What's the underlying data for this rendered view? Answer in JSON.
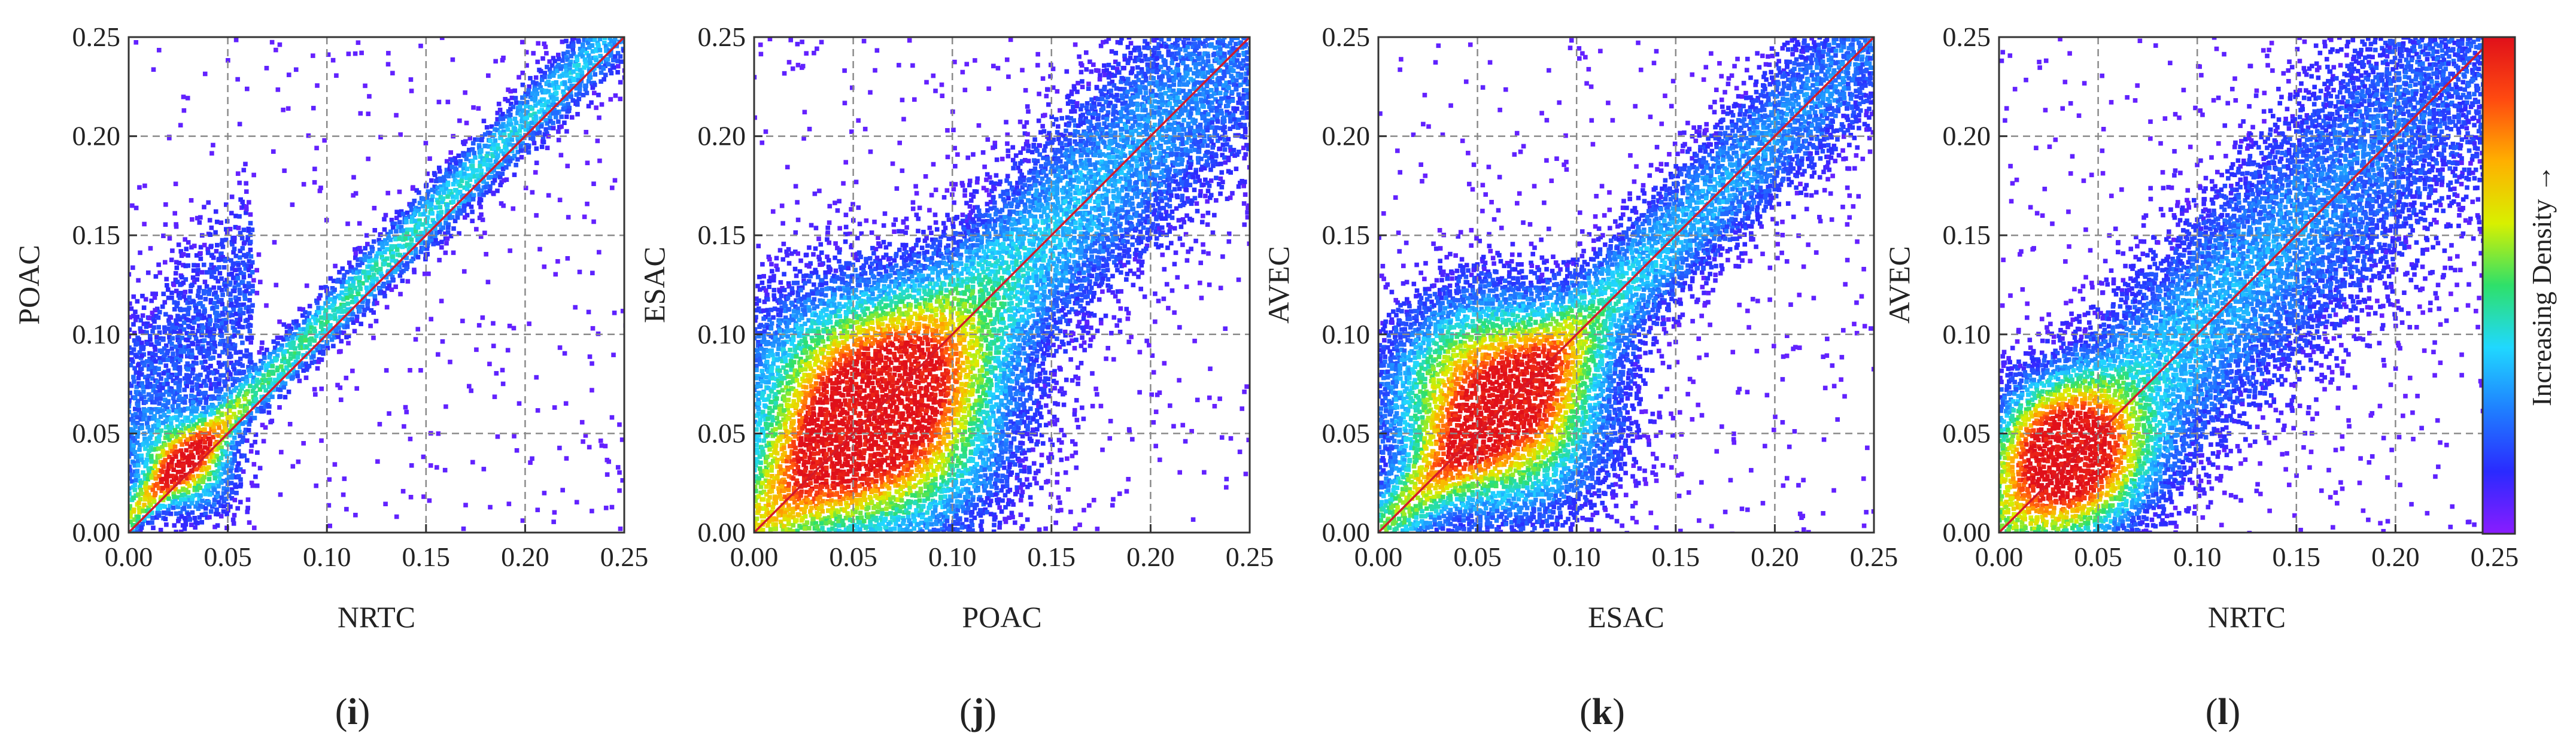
{
  "figure": {
    "colorbar_label": "Increasing Density →",
    "colors": {
      "density_ramp": [
        "#8a1cff",
        "#2a2aff",
        "#1f7fff",
        "#20d8ff",
        "#2ee06a",
        "#d8f000",
        "#ffb000",
        "#ff4a10",
        "#e0101a"
      ],
      "identity_line": "#d21a2a",
      "grid": "#8a8a8a",
      "axes": "#333333"
    }
  },
  "chart_data": [
    {
      "type": "scatter",
      "panel_label": "i",
      "title": "",
      "xlabel": "NRTC",
      "ylabel": "POAC",
      "xlim": [
        0.0,
        0.25
      ],
      "ylim": [
        0.0,
        0.25
      ],
      "xticks": [
        "0.00",
        "0.05",
        "0.10",
        "0.15",
        "0.20",
        "0.25"
      ],
      "yticks": [
        "0.00",
        "0.05",
        "0.10",
        "0.15",
        "0.20",
        "0.25"
      ],
      "grid": true,
      "reference_line": "y = x",
      "density_mode": "tight_above",
      "core_center": [
        0.03,
        0.035
      ]
    },
    {
      "type": "scatter",
      "panel_label": "j",
      "title": "",
      "xlabel": "POAC",
      "ylabel": "ESAC",
      "xlim": [
        0.0,
        0.25
      ],
      "ylim": [
        0.0,
        0.25
      ],
      "xticks": [
        "0.00",
        "0.05",
        "0.10",
        "0.15",
        "0.20",
        "0.25"
      ],
      "yticks": [
        "0.00",
        "0.05",
        "0.10",
        "0.15",
        "0.20",
        "0.25"
      ],
      "grid": true,
      "reference_line": "y = x",
      "density_mode": "broad",
      "core_center": [
        0.06,
        0.06
      ]
    },
    {
      "type": "scatter",
      "panel_label": "k",
      "title": "",
      "xlabel": "ESAC",
      "ylabel": "AVEC",
      "xlim": [
        0.0,
        0.25
      ],
      "ylim": [
        0.0,
        0.25
      ],
      "xticks": [
        "0.00",
        "0.05",
        "0.10",
        "0.15",
        "0.20",
        "0.25"
      ],
      "yticks": [
        "0.00",
        "0.05",
        "0.10",
        "0.15",
        "0.20",
        "0.25"
      ],
      "grid": true,
      "reference_line": "y = x",
      "density_mode": "medium",
      "core_center": [
        0.06,
        0.065
      ]
    },
    {
      "type": "scatter",
      "panel_label": "l",
      "title": "",
      "xlabel": "NRTC",
      "ylabel": "AVEC",
      "xlim": [
        0.0,
        0.25
      ],
      "ylim": [
        0.0,
        0.25
      ],
      "xticks": [
        "0.00",
        "0.05",
        "0.10",
        "0.15",
        "0.20",
        "0.25"
      ],
      "yticks": [
        "0.00",
        "0.05",
        "0.10",
        "0.15",
        "0.20",
        "0.25"
      ],
      "grid": true,
      "reference_line": "y = x",
      "density_mode": "wide",
      "core_center": [
        0.035,
        0.04
      ]
    }
  ]
}
